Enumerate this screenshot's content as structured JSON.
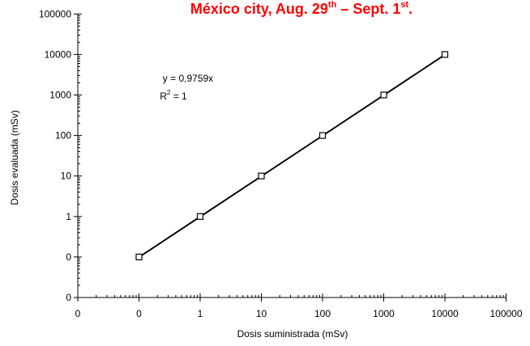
{
  "title": {
    "text": "México city, Aug. 29",
    "sup1": "th",
    "mid": " – Sept. 1",
    "sup2": "st",
    "end": ".",
    "color": "#ff0000"
  },
  "chart_data": {
    "type": "scatter",
    "xlabel": "Dosis suministrada (mSv)",
    "ylabel": "Dosis evaluada (mSv)",
    "x_scale": "log",
    "y_scale": "log",
    "x_tick_labels": [
      "0",
      "0",
      "1",
      "10",
      "100",
      "1000",
      "10000",
      "100000"
    ],
    "y_tick_labels": [
      "0",
      "0",
      "1",
      "10",
      "100",
      "1000",
      "10000",
      "100000"
    ],
    "series": [
      {
        "x": [
          0.1,
          1,
          10,
          100,
          1000,
          10000
        ],
        "y": [
          0.1,
          1,
          10,
          100,
          1000,
          10000
        ],
        "marker": "square",
        "color": "#000000"
      }
    ],
    "trendline": {
      "slope": 0.9759,
      "equation": "y = 0,9759x",
      "r2_base": "R",
      "r2_sup": "2",
      "r2_tail": " = 1"
    },
    "grid": false
  }
}
